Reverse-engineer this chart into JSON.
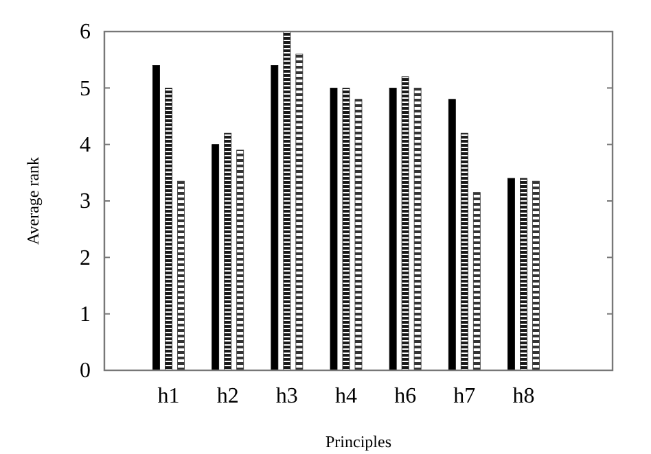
{
  "chart_data": {
    "type": "bar",
    "xlabel": "Principles",
    "ylabel": "Average rank",
    "categories": [
      "h1",
      "h2",
      "h3",
      "h4",
      "h6",
      "h7",
      "h8"
    ],
    "series": [
      {
        "color": "#000000",
        "values": [
          5.4,
          4.0,
          5.4,
          5.0,
          5.0,
          4.8,
          3.4
        ]
      },
      {
        "color": "#1a1a1a",
        "values": [
          5.0,
          4.2,
          6.0,
          5.0,
          5.2,
          4.2,
          3.4
        ]
      },
      {
        "color": "#333333",
        "values": [
          3.35,
          3.9,
          5.6,
          4.8,
          5.0,
          3.15,
          3.35
        ]
      }
    ],
    "ylim": [
      0,
      6
    ],
    "yticks": [
      0,
      1,
      2,
      3,
      4,
      5,
      6
    ],
    "grid": false
  }
}
